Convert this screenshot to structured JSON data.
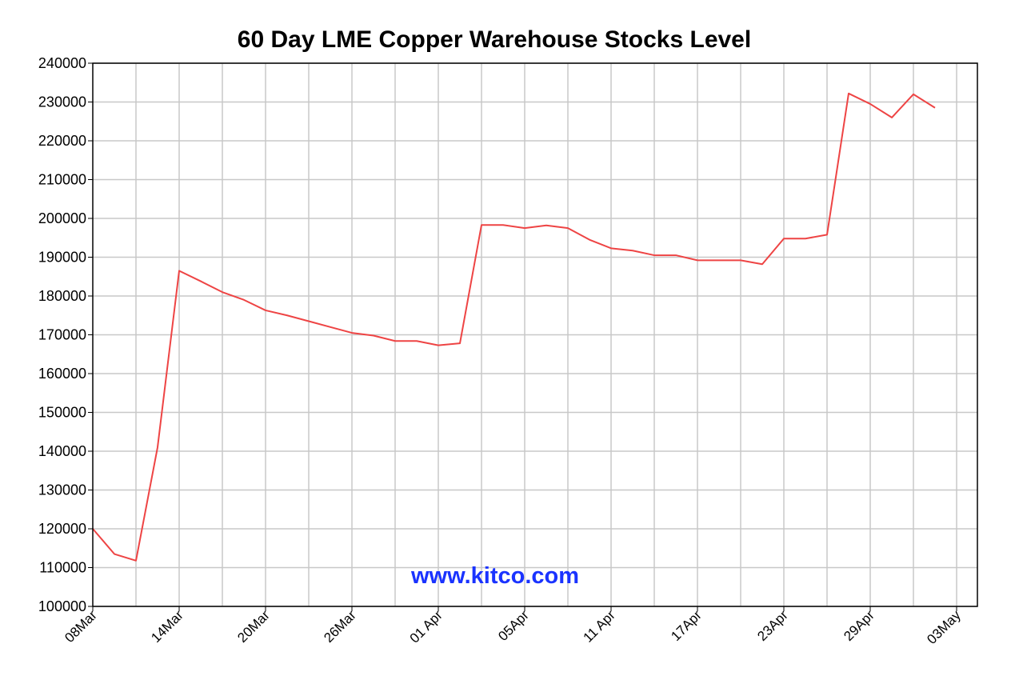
{
  "chart_data": {
    "type": "line",
    "title": "60 Day LME Copper Warehouse Stocks Level",
    "xlabel": "",
    "ylabel": "",
    "ylim": [
      100000,
      240000
    ],
    "y_ticks": [
      100000,
      110000,
      120000,
      130000,
      140000,
      150000,
      160000,
      170000,
      180000,
      190000,
      200000,
      210000,
      220000,
      230000,
      240000
    ],
    "x_tick_labels": [
      "08Mar",
      "14Mar",
      "20Mar",
      "26Mar",
      "01 Apr",
      "05Apr",
      "11 Apr",
      "17Apr",
      "23Apr",
      "29Apr",
      "03May"
    ],
    "x_tick_indices": [
      0,
      2,
      4,
      6,
      8,
      10,
      12,
      14,
      16,
      18,
      20
    ],
    "grid": true,
    "line_color": "#ee4444",
    "series": [
      {
        "values": [
          120000,
          113500,
          111800,
          141000,
          186500,
          183800,
          181000,
          179000,
          176300,
          175000,
          173500,
          172000,
          170500,
          169800,
          168400,
          168400,
          167300,
          167800,
          198300,
          198300,
          197500,
          198200,
          197500,
          194500,
          192300,
          191700,
          190500,
          190500,
          189200,
          189200,
          189200,
          188200,
          194800,
          194800,
          195800,
          232200,
          229500,
          226000,
          232000,
          228500
        ]
      }
    ],
    "watermark": "www.kitco.com",
    "watermark_color": "#1a33ff"
  }
}
